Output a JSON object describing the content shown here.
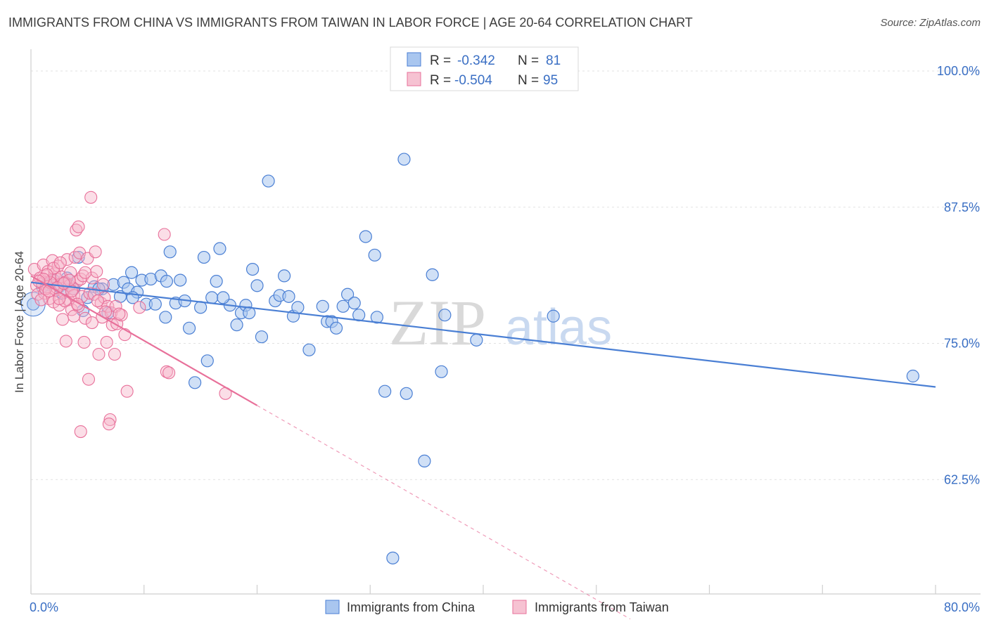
{
  "header": {
    "title": "IMMIGRANTS FROM CHINA VS IMMIGRANTS FROM TAIWAN IN LABOR FORCE | AGE 20-64 CORRELATION CHART",
    "source": "Source: ZipAtlas.com"
  },
  "watermark": {
    "zip": "ZIP",
    "atlas": "atlas"
  },
  "legend_stats": {
    "china": {
      "r_label": "R =",
      "r_value": "-0.342",
      "n_label": "N =",
      "n_value": "81"
    },
    "taiwan": {
      "r_label": "R =",
      "r_value": "-0.504",
      "n_label": "N =",
      "n_value": "95"
    }
  },
  "chart_data": {
    "type": "scatter",
    "xlabel": "",
    "ylabel": "In Labor Force | Age 20-64",
    "xlim": [
      0,
      80
    ],
    "ylim": [
      52,
      102
    ],
    "x_tick_labels": [
      "0.0%",
      "80.0%"
    ],
    "y_ticks": [
      62.5,
      75.0,
      87.5,
      100.0
    ],
    "y_tick_labels": [
      "62.5%",
      "75.0%",
      "87.5%",
      "100.0%"
    ],
    "grid": true,
    "legend_position": "bottom",
    "colors": {
      "china": "#4a7fd4",
      "taiwan": "#e8709a",
      "china_fill": "#a9c6ef",
      "taiwan_fill": "#f6b6c9"
    },
    "series": [
      {
        "name": "Immigrants from China",
        "color": "#4a7fd4",
        "trend": {
          "x": [
            0,
            80
          ],
          "y": [
            80.6,
            71.0
          ],
          "dashed_extension": false
        },
        "points": [
          [
            0.2,
            78.6
          ],
          [
            1.5,
            80.4
          ],
          [
            2.0,
            80.8
          ],
          [
            2.5,
            80.2
          ],
          [
            3.0,
            80.5
          ],
          [
            3.8,
            80.0
          ],
          [
            4.2,
            82.9
          ],
          [
            4.6,
            78.0
          ],
          [
            5.0,
            79.2
          ],
          [
            5.6,
            80.2
          ],
          [
            6.3,
            80.0
          ],
          [
            6.8,
            77.8
          ],
          [
            7.3,
            80.4
          ],
          [
            7.9,
            79.3
          ],
          [
            8.2,
            80.6
          ],
          [
            8.6,
            80.0
          ],
          [
            8.9,
            81.5
          ],
          [
            9.4,
            79.7
          ],
          [
            9.8,
            80.8
          ],
          [
            10.2,
            78.6
          ],
          [
            10.6,
            80.9
          ],
          [
            11.0,
            78.6
          ],
          [
            11.5,
            81.2
          ],
          [
            11.9,
            77.4
          ],
          [
            12.3,
            83.4
          ],
          [
            12.8,
            78.7
          ],
          [
            13.2,
            80.8
          ],
          [
            13.6,
            78.9
          ],
          [
            14.0,
            76.4
          ],
          [
            14.5,
            71.4
          ],
          [
            15.0,
            78.3
          ],
          [
            15.3,
            82.9
          ],
          [
            15.6,
            73.4
          ],
          [
            16.0,
            79.2
          ],
          [
            16.4,
            80.7
          ],
          [
            16.7,
            83.7
          ],
          [
            17.6,
            78.5
          ],
          [
            18.2,
            76.7
          ],
          [
            18.6,
            77.8
          ],
          [
            19.0,
            78.5
          ],
          [
            19.3,
            77.8
          ],
          [
            19.6,
            81.8
          ],
          [
            20.0,
            80.3
          ],
          [
            20.4,
            75.6
          ],
          [
            21.0,
            89.9
          ],
          [
            21.6,
            78.9
          ],
          [
            22.0,
            79.4
          ],
          [
            22.4,
            81.2
          ],
          [
            22.8,
            79.3
          ],
          [
            23.2,
            77.5
          ],
          [
            23.6,
            78.3
          ],
          [
            24.6,
            74.4
          ],
          [
            25.8,
            78.4
          ],
          [
            26.2,
            77.0
          ],
          [
            26.6,
            77.0
          ],
          [
            27.0,
            76.4
          ],
          [
            27.6,
            78.4
          ],
          [
            28.0,
            79.5
          ],
          [
            28.6,
            78.7
          ],
          [
            29.0,
            77.6
          ],
          [
            29.6,
            84.8
          ],
          [
            30.4,
            83.1
          ],
          [
            30.6,
            77.4
          ],
          [
            31.3,
            70.6
          ],
          [
            32.0,
            55.3
          ],
          [
            33.0,
            91.9
          ],
          [
            33.2,
            70.4
          ],
          [
            34.8,
            64.2
          ],
          [
            35.5,
            81.3
          ],
          [
            36.3,
            72.4
          ],
          [
            36.6,
            77.6
          ],
          [
            39.4,
            75.3
          ],
          [
            46.2,
            77.5
          ],
          [
            78.0,
            72.0
          ],
          [
            3.2,
            81.0
          ],
          [
            6.0,
            80.0
          ],
          [
            9.0,
            79.2
          ],
          [
            12.0,
            80.7
          ],
          [
            17.0,
            79.2
          ],
          [
            1.0,
            80.2
          ],
          [
            2.8,
            79.6
          ]
        ]
      },
      {
        "name": "Immigrants from Taiwan",
        "color": "#e8709a",
        "trend": {
          "x": [
            0,
            20
          ],
          "y": [
            81.2,
            69.3
          ],
          "dash_x": [
            20,
            53
          ],
          "dash_y": [
            69.3,
            49.7
          ]
        },
        "points": [
          [
            0.3,
            81.8
          ],
          [
            0.5,
            80.3
          ],
          [
            0.6,
            79.5
          ],
          [
            0.8,
            81.0
          ],
          [
            1.0,
            80.5
          ],
          [
            1.1,
            82.2
          ],
          [
            1.2,
            79.6
          ],
          [
            1.4,
            80.2
          ],
          [
            1.5,
            81.6
          ],
          [
            1.6,
            79.1
          ],
          [
            1.8,
            80.8
          ],
          [
            1.9,
            82.6
          ],
          [
            2.0,
            78.8
          ],
          [
            2.1,
            81.4
          ],
          [
            2.2,
            79.9
          ],
          [
            2.3,
            80.9
          ],
          [
            2.4,
            82.1
          ],
          [
            2.5,
            78.5
          ],
          [
            2.6,
            80.4
          ],
          [
            2.7,
            81.1
          ],
          [
            2.8,
            77.2
          ],
          [
            2.9,
            79.7
          ],
          [
            3.0,
            80.6
          ],
          [
            3.1,
            75.2
          ],
          [
            3.2,
            82.7
          ],
          [
            3.3,
            79.0
          ],
          [
            3.4,
            80.3
          ],
          [
            3.5,
            81.5
          ],
          [
            3.6,
            78.1
          ],
          [
            3.7,
            80.0
          ],
          [
            3.8,
            79.4
          ],
          [
            3.9,
            82.9
          ],
          [
            4.0,
            85.4
          ],
          [
            4.1,
            80.7
          ],
          [
            4.2,
            78.4
          ],
          [
            4.3,
            83.3
          ],
          [
            4.4,
            80.9
          ],
          [
            4.5,
            79.3
          ],
          [
            4.6,
            81.2
          ],
          [
            4.7,
            75.1
          ],
          [
            4.8,
            77.3
          ],
          [
            5.0,
            82.8
          ],
          [
            5.1,
            71.7
          ],
          [
            5.2,
            79.6
          ],
          [
            5.3,
            88.4
          ],
          [
            5.4,
            81.0
          ],
          [
            5.6,
            79.5
          ],
          [
            5.7,
            83.4
          ],
          [
            5.8,
            81.6
          ],
          [
            6.0,
            74.0
          ],
          [
            6.2,
            78.7
          ],
          [
            6.3,
            77.4
          ],
          [
            6.4,
            80.4
          ],
          [
            6.5,
            79.2
          ],
          [
            6.7,
            75.1
          ],
          [
            6.8,
            78.4
          ],
          [
            7.0,
            68.0
          ],
          [
            7.1,
            77.8
          ],
          [
            7.2,
            76.7
          ],
          [
            7.4,
            74.0
          ],
          [
            7.5,
            78.4
          ],
          [
            7.6,
            76.8
          ],
          [
            8.0,
            77.6
          ],
          [
            8.3,
            75.8
          ],
          [
            8.5,
            70.6
          ],
          [
            9.6,
            78.3
          ],
          [
            11.8,
            85.0
          ],
          [
            12.0,
            72.4
          ],
          [
            12.2,
            72.3
          ],
          [
            17.2,
            70.4
          ],
          [
            4.2,
            85.7
          ],
          [
            5.4,
            76.9
          ],
          [
            6.9,
            67.6
          ],
          [
            4.4,
            66.9
          ],
          [
            1.3,
            80.0
          ],
          [
            2.0,
            81.9
          ],
          [
            2.6,
            82.4
          ],
          [
            3.0,
            78.9
          ],
          [
            3.6,
            79.8
          ],
          [
            1.7,
            80.6
          ],
          [
            2.3,
            80.1
          ],
          [
            0.9,
            79.0
          ],
          [
            1.4,
            81.3
          ],
          [
            3.4,
            80.8
          ],
          [
            4.8,
            81.5
          ],
          [
            5.9,
            78.9
          ],
          [
            6.6,
            77.9
          ],
          [
            7.8,
            77.7
          ],
          [
            2.5,
            79.1
          ],
          [
            1.1,
            80.9
          ],
          [
            3.8,
            77.5
          ],
          [
            4.1,
            78.6
          ],
          [
            2.9,
            80.5
          ],
          [
            1.6,
            79.8
          ],
          [
            0.7,
            80.7
          ]
        ]
      }
    ]
  },
  "bottom_legend": {
    "china_label": "Immigrants from China",
    "taiwan_label": "Immigrants from Taiwan"
  }
}
